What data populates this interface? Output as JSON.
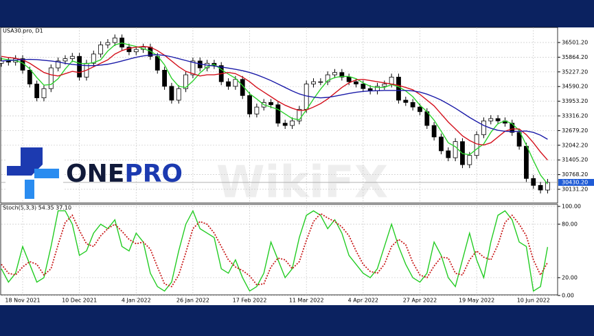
{
  "logo": {
    "part1": "ONE",
    "part2": "PRO"
  },
  "watermark": "WikiFX",
  "chart_data": [
    {
      "type": "candlestick",
      "title": "USA30.pro, D1",
      "up_color": "#ffffff",
      "down_color": "#000000",
      "grid": true,
      "categories": [
        null,
        null,
        null,
        "18 Nov 2021",
        null,
        null,
        null,
        null,
        null,
        null,
        null,
        "10 Dec 2021",
        null,
        null,
        null,
        null,
        null,
        null,
        null,
        "4 Jan 2022",
        null,
        null,
        null,
        null,
        null,
        null,
        null,
        "26 Jan 2022",
        null,
        null,
        null,
        null,
        null,
        null,
        null,
        "17 Feb 2022",
        null,
        null,
        null,
        null,
        null,
        null,
        null,
        "11 Mar 2022",
        null,
        null,
        null,
        null,
        null,
        null,
        null,
        "4 Apr 2022",
        null,
        null,
        null,
        null,
        null,
        null,
        null,
        "27 Apr 2022",
        null,
        null,
        null,
        null,
        null,
        null,
        null,
        "19 May 2022",
        null,
        null,
        null,
        null,
        null,
        null,
        null,
        "10 Jun 2022",
        null,
        null
      ],
      "open": [
        35600,
        35700,
        35650,
        35800,
        35300,
        34700,
        34100,
        34500,
        35400,
        35700,
        35800,
        35900,
        35000,
        35600,
        36000,
        36400,
        36500,
        36700,
        36300,
        36100,
        36200,
        36300,
        35900,
        35300,
        34600,
        34000,
        34500,
        35100,
        35700,
        35400,
        35600,
        35500,
        34800,
        34600,
        34900,
        34200,
        33400,
        33700,
        33900,
        33800,
        33000,
        32900,
        33100,
        33600,
        34700,
        34800,
        34800,
        35100,
        35200,
        35000,
        34800,
        34700,
        34500,
        34400,
        34600,
        34700,
        35000,
        34000,
        33900,
        33700,
        33500,
        32900,
        32400,
        31800,
        31500,
        32200,
        31200,
        31600,
        32500,
        33100,
        33200,
        33100,
        33000,
        32600,
        32000,
        30600,
        30300,
        30100
      ],
      "high": [
        35850,
        35850,
        35950,
        35950,
        35450,
        34850,
        34650,
        35550,
        35850,
        35950,
        36050,
        36050,
        35750,
        36150,
        36550,
        36650,
        36850,
        36850,
        36450,
        36350,
        36450,
        36450,
        36050,
        35450,
        34750,
        34650,
        35250,
        35850,
        35850,
        35750,
        35750,
        35650,
        34950,
        35050,
        35050,
        34350,
        33850,
        34050,
        34050,
        33950,
        33150,
        33250,
        33750,
        34850,
        34950,
        34950,
        35250,
        35350,
        35350,
        35150,
        34950,
        34850,
        34650,
        34750,
        34850,
        35150,
        35150,
        34150,
        34050,
        33850,
        33650,
        33050,
        32550,
        31950,
        32350,
        32350,
        31750,
        32650,
        33250,
        33350,
        33350,
        33250,
        33150,
        32750,
        32150,
        30750,
        30450,
        30580
      ],
      "low": [
        35450,
        35500,
        35500,
        35150,
        34550,
        33950,
        33950,
        34350,
        35250,
        35550,
        35650,
        34850,
        34850,
        35450,
        35850,
        36250,
        36350,
        36150,
        35950,
        35950,
        36050,
        35750,
        35150,
        34450,
        33850,
        33850,
        34350,
        34950,
        35250,
        35250,
        35350,
        34650,
        34450,
        34450,
        34050,
        33250,
        33250,
        33550,
        33650,
        32850,
        32750,
        32750,
        32950,
        33450,
        34550,
        34650,
        34650,
        34950,
        34850,
        34650,
        34550,
        34350,
        34250,
        34250,
        34450,
        34550,
        33850,
        33750,
        33550,
        33350,
        32750,
        32250,
        31650,
        31350,
        31350,
        31050,
        31050,
        31450,
        32350,
        32950,
        32950,
        32850,
        32450,
        31850,
        30450,
        30150,
        29950,
        29950
      ],
      "close": [
        35700,
        35650,
        35800,
        35300,
        34700,
        34100,
        34500,
        35400,
        35700,
        35800,
        35900,
        35000,
        35600,
        36000,
        36400,
        36500,
        36700,
        36300,
        36100,
        36200,
        36300,
        35900,
        35300,
        34600,
        34000,
        34500,
        35100,
        35700,
        35400,
        35600,
        35500,
        34800,
        34600,
        34900,
        34200,
        33400,
        33700,
        33900,
        33800,
        33000,
        32900,
        33100,
        33600,
        34700,
        34800,
        34800,
        35100,
        35200,
        35000,
        34800,
        34700,
        34500,
        34400,
        34600,
        34700,
        35000,
        34000,
        33900,
        33700,
        33500,
        32900,
        32400,
        31800,
        31500,
        32200,
        31200,
        31600,
        32500,
        33100,
        33200,
        33100,
        33000,
        32600,
        32000,
        30600,
        30300,
        30100,
        30430
      ],
      "series": [
        {
          "color": "#2bd12b",
          "values": [
            35800,
            35750,
            35720,
            35610,
            35360,
            34980,
            34650,
            34680,
            34930,
            35350,
            35700,
            35600,
            35580,
            35630,
            35750,
            36130,
            36400,
            36480,
            36400,
            36330,
            36230,
            36130,
            35930,
            35530,
            34950,
            34600,
            34550,
            34830,
            35180,
            35450,
            35550,
            35330,
            35130,
            34950,
            34630,
            34280,
            34050,
            33800,
            33700,
            33600,
            33400,
            33200,
            33150,
            33580,
            34050,
            34480,
            34850,
            34980,
            35030,
            35030,
            34930,
            34750,
            34600,
            34550,
            34550,
            34680,
            34580,
            34400,
            34150,
            33780,
            33500,
            33130,
            32650,
            32150,
            31980,
            31680,
            31630,
            31880,
            32100,
            32600,
            32980,
            33100,
            32980,
            32680,
            32050,
            31380,
            30750,
            30360
          ]
        },
        {
          "color": "#d4101c",
          "values": [
            35900,
            35850,
            35820,
            35750,
            35600,
            35400,
            35200,
            35100,
            35050,
            35150,
            35250,
            35200,
            35300,
            35450,
            35600,
            35750,
            36000,
            36150,
            36250,
            36300,
            36330,
            36300,
            36150,
            35950,
            35700,
            35450,
            35250,
            35150,
            35050,
            35100,
            35100,
            35150,
            35200,
            35150,
            35000,
            34800,
            34550,
            34350,
            34150,
            33950,
            33780,
            33650,
            33550,
            33570,
            33700,
            33850,
            34050,
            34300,
            34550,
            34750,
            34880,
            34900,
            34850,
            34800,
            34750,
            34700,
            34640,
            34550,
            34450,
            34250,
            34000,
            33750,
            33400,
            33050,
            32750,
            32450,
            32250,
            32100,
            32050,
            32150,
            32400,
            32650,
            32750,
            32750,
            32500,
            32150,
            31750,
            31400
          ]
        },
        {
          "color": "#1a1aa8",
          "values": [
            35700,
            35720,
            35740,
            35760,
            35770,
            35760,
            35730,
            35700,
            35660,
            35600,
            35550,
            35520,
            35500,
            35500,
            35520,
            35560,
            35620,
            35700,
            35780,
            35860,
            35920,
            35960,
            35970,
            35940,
            35880,
            35800,
            35720,
            35640,
            35570,
            35520,
            35480,
            35440,
            35390,
            35340,
            35280,
            35200,
            35100,
            34980,
            34850,
            34700,
            34550,
            34400,
            34270,
            34180,
            34130,
            34100,
            34120,
            34170,
            34230,
            34290,
            34340,
            34380,
            34400,
            34410,
            34420,
            34420,
            34420,
            34420,
            34400,
            34350,
            34260,
            34140,
            34000,
            33830,
            33650,
            33450,
            33250,
            33070,
            32900,
            32780,
            32690,
            32650,
            32640,
            32650,
            32660,
            32600,
            32480,
            32300
          ]
        }
      ],
      "ylim": [
        29537,
        37156
      ],
      "yticks": [
        {
          "value": 36501.2,
          "label": "36501.20"
        },
        {
          "value": 35864.2,
          "label": "35864.20"
        },
        {
          "value": 35227.2,
          "label": "35227.20"
        },
        {
          "value": 34590.2,
          "label": "34590.20"
        },
        {
          "value": 33953.2,
          "label": "33953.20"
        },
        {
          "value": 33316.2,
          "label": "33316.20"
        },
        {
          "value": 32679.2,
          "label": "32679.20"
        },
        {
          "value": 32042.2,
          "label": "32042.20"
        },
        {
          "value": 31405.2,
          "label": "31405.20"
        },
        {
          "value": 30768.2,
          "label": "30768.20"
        },
        {
          "value": 30131.2,
          "label": "30131.20"
        }
      ],
      "current": {
        "value": 30430.2,
        "label": "30430.20",
        "color": "#1f5bd6"
      }
    },
    {
      "type": "line",
      "title": "Stoch(5,3,3) 54.35 37.10",
      "grid": true,
      "series": [
        {
          "color": "#22cc22",
          "style": "solid",
          "values": [
            30,
            15,
            25,
            55,
            35,
            15,
            20,
            55,
            95,
            95,
            80,
            45,
            50,
            70,
            80,
            75,
            85,
            55,
            50,
            70,
            60,
            25,
            10,
            5,
            15,
            50,
            80,
            95,
            75,
            70,
            65,
            30,
            25,
            40,
            20,
            5,
            10,
            25,
            60,
            40,
            20,
            30,
            65,
            90,
            95,
            90,
            75,
            85,
            70,
            45,
            35,
            25,
            20,
            30,
            55,
            80,
            55,
            35,
            20,
            15,
            25,
            60,
            45,
            20,
            10,
            40,
            70,
            40,
            20,
            60,
            90,
            95,
            85,
            60,
            55,
            5,
            10,
            54.35
          ]
        },
        {
          "color": "#c81818",
          "style": "dotted",
          "values": [
            35,
            25,
            23,
            32,
            38,
            35,
            23,
            30,
            57,
            82,
            90,
            73,
            58,
            55,
            67,
            75,
            80,
            72,
            63,
            58,
            60,
            52,
            32,
            13,
            10,
            23,
            48,
            75,
            83,
            80,
            70,
            55,
            40,
            32,
            28,
            22,
            12,
            13,
            32,
            42,
            40,
            30,
            38,
            62,
            83,
            92,
            87,
            83,
            77,
            67,
            50,
            35,
            27,
            25,
            35,
            55,
            63,
            57,
            37,
            23,
            20,
            33,
            43,
            42,
            25,
            23,
            40,
            50,
            43,
            40,
            57,
            82,
            90,
            80,
            67,
            40,
            23,
            37.1
          ]
        }
      ],
      "ylim": [
        -7,
        102.3
      ],
      "yticks": [
        {
          "value": 100,
          "label": "100.00"
        },
        {
          "value": 80,
          "label": "80.00"
        },
        {
          "value": 20,
          "label": "20.00"
        },
        {
          "value": 0,
          "label": "0.00"
        }
      ]
    }
  ]
}
